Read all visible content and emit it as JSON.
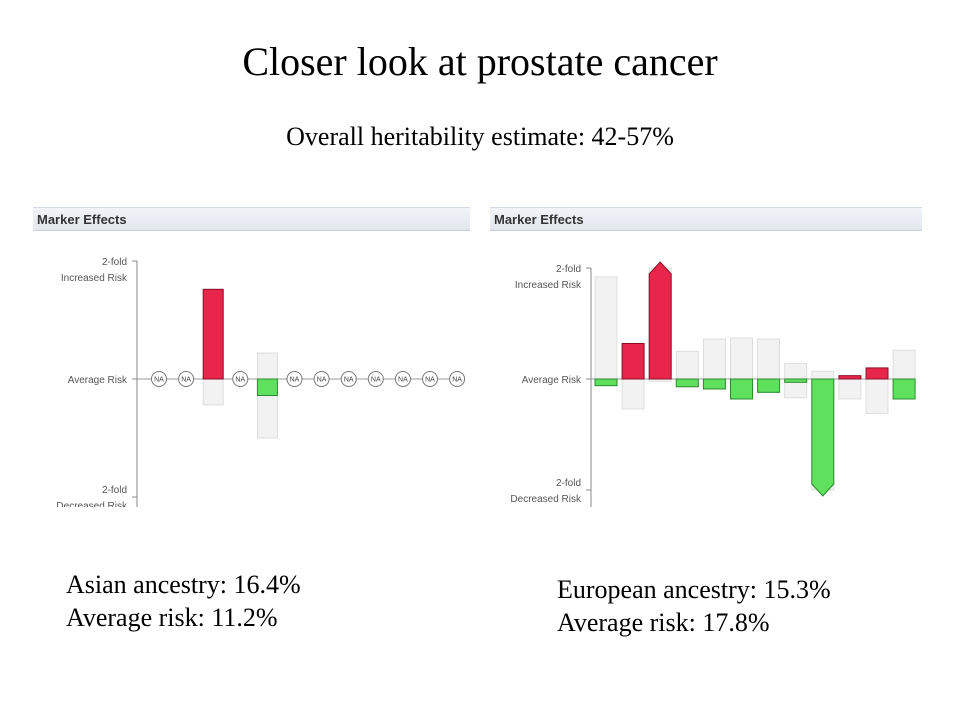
{
  "title": "Closer look at prostate cancer",
  "subtitle": "Overall heritability estimate: 42-57%",
  "colors": {
    "increased": "#e8264c",
    "decreased": "#5fe05f",
    "range": "#f2f2f2",
    "range_border": "#d8d8d8"
  },
  "chart_data": [
    {
      "type": "bar",
      "title": "Marker Effects",
      "y_axis_labels": {
        "top": [
          "2-fold",
          "Increased Risk"
        ],
        "middle": "Average Risk",
        "bottom": [
          "2-fold",
          "Decreased Risk"
        ]
      },
      "ylim": [
        -1,
        1
      ],
      "na_label": "NA",
      "markers": [
        {
          "value": null,
          "range": null
        },
        {
          "value": null,
          "range": null
        },
        {
          "value": 0.76,
          "range": [
            -0.22,
            0.76
          ]
        },
        {
          "value": null,
          "range": null
        },
        {
          "value": -0.14,
          "range": [
            -0.5,
            0.22
          ]
        },
        {
          "value": null,
          "range": null
        },
        {
          "value": null,
          "range": null
        },
        {
          "value": null,
          "range": null
        },
        {
          "value": null,
          "range": null
        },
        {
          "value": null,
          "range": null
        },
        {
          "value": null,
          "range": null
        },
        {
          "value": null,
          "range": null
        }
      ]
    },
    {
      "type": "bar",
      "title": "Marker Effects",
      "y_axis_labels": {
        "top": [
          "2-fold",
          "Increased Risk"
        ],
        "middle": "Average Risk",
        "bottom": [
          "2-fold",
          "Decreased Risk"
        ]
      },
      "ylim": [
        -1,
        1
      ],
      "markers": [
        {
          "value": -0.06,
          "range": [
            -0.06,
            0.92
          ]
        },
        {
          "value": 0.32,
          "range": [
            -0.27,
            0.32
          ]
        },
        {
          "value": 1.0,
          "range": [
            -0.02,
            1.0
          ],
          "overflow": true
        },
        {
          "value": -0.07,
          "range": [
            -0.07,
            0.25
          ]
        },
        {
          "value": -0.09,
          "range": [
            -0.09,
            0.36
          ]
        },
        {
          "value": -0.18,
          "range": [
            -0.18,
            0.37
          ]
        },
        {
          "value": -0.12,
          "range": [
            -0.12,
            0.36
          ]
        },
        {
          "value": -0.03,
          "range": [
            -0.17,
            0.14
          ]
        },
        {
          "value": -1.0,
          "range": [
            -1.0,
            0.07
          ],
          "overflow": true
        },
        {
          "value": 0.03,
          "range": [
            -0.18,
            0.03
          ]
        },
        {
          "value": 0.1,
          "range": [
            -0.31,
            0.1
          ]
        },
        {
          "value": -0.18,
          "range": [
            -0.18,
            0.26
          ]
        }
      ]
    }
  ],
  "captions": {
    "left": {
      "ancestry": "Asian ancestry: 16.4%",
      "risk": "Average risk: 11.2%"
    },
    "right": {
      "ancestry": "European ancestry: 15.3%",
      "risk": "Average risk: 17.8%"
    }
  }
}
